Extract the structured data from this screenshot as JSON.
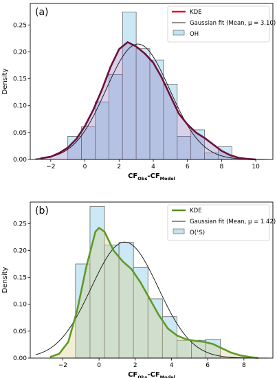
{
  "chart_data": [
    {
      "type": "bar",
      "panel_label": "(a)",
      "ylabel": "Density",
      "xlabel": {
        "main": "CF",
        "sub1": "Obs",
        "mid": "-CF",
        "sub2": "Model"
      },
      "xlim": [
        -3.2,
        11.0
      ],
      "ylim": [
        0,
        0.29
      ],
      "xticks": [
        -2,
        0,
        2,
        4,
        6,
        8,
        10
      ],
      "xtick_labels": [
        "−2",
        "0",
        "2",
        "4",
        "6",
        "8",
        "10"
      ],
      "yticks": [
        0.0,
        0.05,
        0.1,
        0.15,
        0.2,
        0.25
      ],
      "ytick_labels": [
        "0.00",
        "0.05",
        "0.10",
        "0.15",
        "0.20",
        "0.25"
      ],
      "histogram": {
        "name": "OH",
        "bin_edges": [
          -1.0,
          -0.2,
          0.6,
          1.4,
          2.2,
          3.0,
          3.8,
          4.6,
          5.4,
          6.2,
          7.0,
          7.8,
          8.6
        ],
        "values": [
          0.043,
          0.061,
          0.107,
          0.158,
          0.274,
          0.206,
          0.185,
          0.14,
          0.043,
          0.055,
          0.012,
          0.024
        ]
      },
      "kde": {
        "name": "KDE",
        "x": [
          -2.6,
          -2.0,
          -1.5,
          -1.0,
          -0.5,
          0.0,
          0.5,
          1.0,
          1.5,
          2.0,
          2.5,
          3.0,
          3.5,
          4.0,
          4.5,
          5.0,
          5.5,
          6.0,
          6.5,
          7.0,
          7.5,
          8.0,
          8.5,
          9.0,
          9.5,
          10.0
        ],
        "y": [
          0.002,
          0.005,
          0.012,
          0.022,
          0.038,
          0.062,
          0.093,
          0.13,
          0.172,
          0.205,
          0.218,
          0.21,
          0.197,
          0.18,
          0.152,
          0.118,
          0.085,
          0.065,
          0.05,
          0.04,
          0.028,
          0.016,
          0.008,
          0.003,
          0.001,
          0.0
        ]
      },
      "gaussian": {
        "name": "Gaussian fit (Mean, μ = 3.10)",
        "mean": 3.1,
        "sd": 1.86
      },
      "colors": {
        "hist_fill": "#a9d8ec",
        "hist_edge": "#555555",
        "kde_line": "#6d0e3a",
        "kde_fill": "#8e7cc3",
        "gauss_line": "#222222",
        "legend_kde": "#e8102e"
      },
      "legend": [
        "KDE",
        "Gaussian fit (Mean, μ = 3.10)",
        "OH"
      ],
      "legend_loc": "top-right"
    },
    {
      "type": "bar",
      "panel_label": "(b)",
      "ylabel": "Density",
      "xlabel": {
        "main": "CF",
        "sub1": "Obs",
        "mid": "-CF",
        "sub2": "Model"
      },
      "xlim": [
        -3.8,
        9.6
      ],
      "ylim": [
        0,
        0.29
      ],
      "xticks": [
        -2,
        0,
        2,
        4,
        6,
        8
      ],
      "xtick_labels": [
        "−2",
        "0",
        "2",
        "4",
        "6",
        "8"
      ],
      "yticks": [
        0.0,
        0.05,
        0.1,
        0.15,
        0.2,
        0.25
      ],
      "ytick_labels": [
        "0.00",
        "0.05",
        "0.10",
        "0.15",
        "0.20",
        "0.25"
      ],
      "histogram": {
        "name": "O(¹S)",
        "bin_edges": [
          -1.3,
          -0.5,
          0.3,
          1.1,
          1.9,
          2.7,
          3.5,
          4.3,
          5.1,
          5.9,
          6.7
        ],
        "values": [
          0.175,
          0.282,
          0.21,
          0.215,
          0.168,
          0.11,
          0.077,
          0.033,
          0.033,
          0.035
        ]
      },
      "kde": {
        "name": "KDE",
        "x": [
          -2.7,
          -2.2,
          -1.7,
          -1.2,
          -0.7,
          -0.2,
          0.0,
          0.3,
          0.8,
          1.3,
          1.8,
          2.3,
          2.8,
          3.3,
          3.8,
          4.3,
          4.8,
          5.3,
          5.8,
          6.3,
          6.8,
          7.3,
          7.8,
          8.3,
          8.8
        ],
        "y": [
          0.002,
          0.008,
          0.03,
          0.09,
          0.17,
          0.235,
          0.242,
          0.235,
          0.2,
          0.18,
          0.165,
          0.14,
          0.11,
          0.08,
          0.055,
          0.042,
          0.035,
          0.032,
          0.03,
          0.026,
          0.018,
          0.01,
          0.005,
          0.002,
          0.0
        ]
      },
      "gaussian": {
        "name": "Gaussian fit (Mean, μ = 1.42)",
        "mean": 1.42,
        "sd": 1.85
      },
      "colors": {
        "hist_fill": "#a9d8ec",
        "hist_edge": "#555555",
        "kde_line": "#5e9a22",
        "kde_fill": "#d9ca85",
        "gauss_line": "#222222",
        "legend_kde": "#4f8f1d"
      },
      "legend": [
        "KDE",
        "Gaussian fit (Mean, μ = 1.42)",
        "O(¹S)"
      ],
      "legend_loc": "top-right"
    }
  ]
}
